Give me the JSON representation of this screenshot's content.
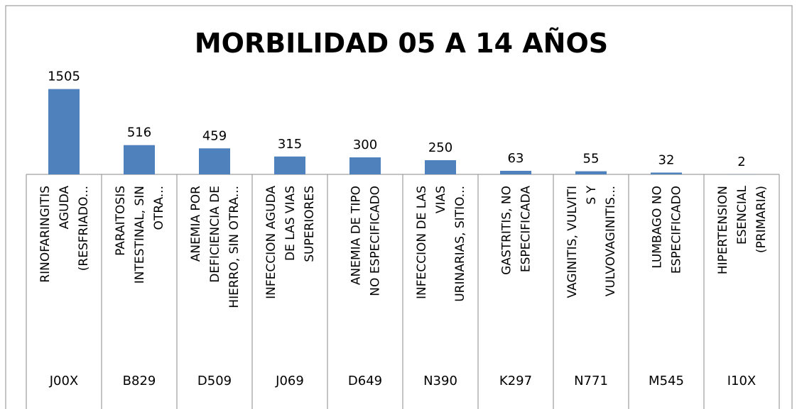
{
  "chart_data": {
    "type": "bar",
    "title": "MORBILIDAD 05 A 14 AÑOS",
    "categories": [
      "J00X",
      "B829",
      "D509",
      "J069",
      "D649",
      "N390",
      "K297",
      "N771",
      "M545",
      "I10X"
    ],
    "descriptions": [
      [
        "RINOFARINGITIS",
        "AGUDA",
        "(RESFRIADO..."
      ],
      [
        "PARAITOSIS",
        "INTESTINAL, SIN",
        "OTRA..."
      ],
      [
        "ANEMIA POR",
        "DEFICIENCIA DE",
        "HIERRO, SIN OTRA..."
      ],
      [
        "INFECCION AGUDA",
        "DE LAS VIAS",
        "SUPERIORES"
      ],
      [
        "ANEMIA DE TIPO",
        "NO ESPECIFICADO"
      ],
      [
        "INFECCION DE LAS",
        "VIAS",
        "URINARIAS, SITIO..."
      ],
      [
        "GASTRITIS, NO",
        "ESPECIFICADA"
      ],
      [
        "VAGINITIS, VULVITI",
        "S Y",
        "VULVOVAGINITIS..."
      ],
      [
        "LUMBAGO NO",
        "ESPECIFICADO"
      ],
      [
        "HIPERTENSION",
        "ESENCIAL",
        "(PRIMARIA)"
      ]
    ],
    "values": [
      1505,
      516,
      459,
      315,
      300,
      250,
      63,
      55,
      32,
      2
    ],
    "color": "#4f81bd",
    "ylim": [
      0,
      1600
    ]
  }
}
